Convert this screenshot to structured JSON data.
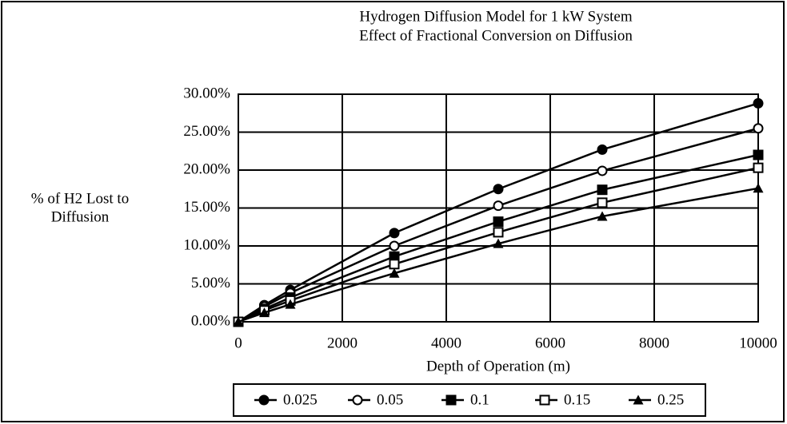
{
  "chart_data": {
    "type": "line",
    "title": "Hydrogen Diffusion Model for 1 kW System",
    "subtitle": "Effect of Fractional Conversion on Diffusion",
    "y_label": [
      "% of H2 Lost to",
      "Diffusion"
    ],
    "x_label": "Depth of Operation (m)",
    "x": [
      0,
      500,
      1000,
      3000,
      5000,
      7000,
      10000
    ],
    "series": [
      {
        "name": "0.025",
        "color": "#000000",
        "marker": "circle-filled",
        "values": [
          0,
          2.2,
          4.2,
          11.7,
          17.5,
          22.7,
          28.8
        ]
      },
      {
        "name": "0.05",
        "color": "#000000",
        "marker": "circle-open",
        "values": [
          0,
          2.0,
          3.8,
          10.0,
          15.3,
          19.9,
          25.5
        ]
      },
      {
        "name": "0.1",
        "color": "#000000",
        "marker": "square-filled",
        "values": [
          0,
          1.7,
          3.2,
          8.6,
          13.2,
          17.4,
          22.0
        ]
      },
      {
        "name": "0.15",
        "color": "#000000",
        "marker": "square-open",
        "values": [
          0,
          1.5,
          2.8,
          7.6,
          11.8,
          15.7,
          20.3
        ]
      },
      {
        "name": "0.25",
        "color": "#000000",
        "marker": "triangle",
        "values": [
          0,
          1.2,
          2.3,
          6.4,
          10.3,
          13.9,
          17.6
        ]
      }
    ],
    "xlim": [
      0,
      10000
    ],
    "xticks": [
      0,
      2000,
      4000,
      6000,
      8000,
      10000
    ],
    "ylim": [
      0,
      30
    ],
    "yticks": [
      {
        "value": 0,
        "label": "0.00%"
      },
      {
        "value": 5,
        "label": "5.00%"
      },
      {
        "value": 10,
        "label": "10.00%"
      },
      {
        "value": 15,
        "label": "15.00%"
      },
      {
        "value": 20,
        "label": "20.00%"
      },
      {
        "value": 25,
        "label": "25.00%"
      },
      {
        "value": 30,
        "label": "30.00%"
      }
    ],
    "grid": true,
    "legend": "bottom"
  }
}
